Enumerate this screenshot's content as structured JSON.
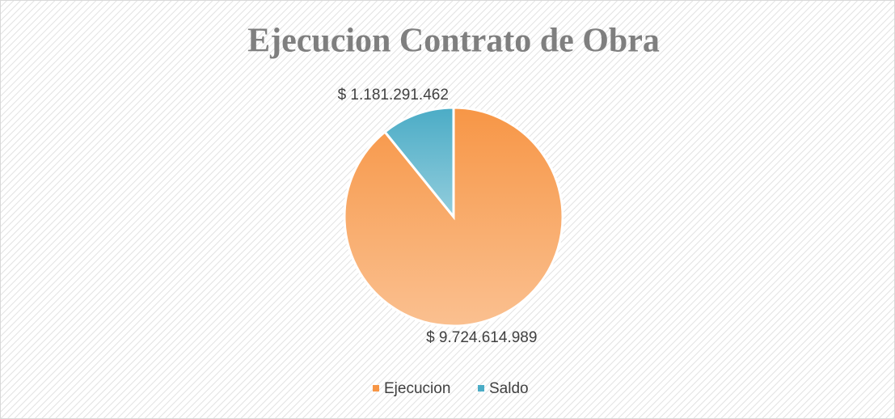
{
  "chart_data": {
    "type": "pie",
    "title": "Ejecucion Contrato de Obra",
    "categories": [
      "Ejecucion",
      "Saldo"
    ],
    "values": [
      9724614989,
      1181291462
    ],
    "value_labels": [
      "$ 9.724.614.989",
      "$ 1.181.291.462"
    ],
    "colors": [
      "#f79646",
      "#4bacc6"
    ],
    "legend": "bottom"
  }
}
